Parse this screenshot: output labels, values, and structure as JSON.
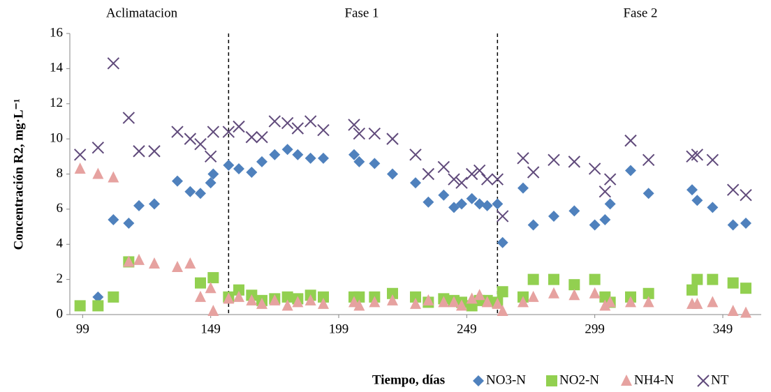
{
  "chart_data": {
    "type": "scatter",
    "x_label": "Tiempo, días",
    "y_label": "Concentración R2,  mg·L⁻¹",
    "phases": [
      "Aclimatacion",
      "Fase 1",
      "Fase 2"
    ],
    "vlines": [
      156,
      261
    ],
    "xlim": [
      94,
      364
    ],
    "xticks": [
      99,
      149,
      199,
      249,
      299,
      349
    ],
    "ylim": [
      0,
      16
    ],
    "yticks": [
      0,
      2,
      4,
      6,
      8,
      10,
      12,
      14,
      16
    ],
    "series": [
      {
        "name": "NO3-N",
        "color": "#4f81bd",
        "marker": "diamond",
        "x": [
          105,
          111,
          117,
          121,
          127,
          136,
          141,
          145,
          149,
          150,
          156,
          160,
          165,
          169,
          174,
          179,
          183,
          188,
          193,
          205,
          207,
          213,
          220,
          229,
          234,
          240,
          244,
          247,
          251,
          254,
          257,
          261,
          263,
          271,
          275,
          283,
          291,
          299,
          303,
          305,
          313,
          320,
          337,
          339,
          345,
          353,
          358
        ],
        "values": [
          1.0,
          5.4,
          5.2,
          6.2,
          6.3,
          7.6,
          7.0,
          6.9,
          7.5,
          8.0,
          8.5,
          8.3,
          8.1,
          8.7,
          9.1,
          9.4,
          9.1,
          8.9,
          8.9,
          9.1,
          8.7,
          8.6,
          8.0,
          7.5,
          6.4,
          6.8,
          6.1,
          6.3,
          6.6,
          6.3,
          6.2,
          6.3,
          4.1,
          7.2,
          5.1,
          5.6,
          5.9,
          5.1,
          5.4,
          6.3,
          8.2,
          6.9,
          7.1,
          6.5,
          6.1,
          5.1,
          5.2
        ]
      },
      {
        "name": "NO2-N",
        "color": "#92d050",
        "marker": "square",
        "x": [
          98,
          105,
          111,
          117,
          145,
          150,
          156,
          160,
          165,
          169,
          174,
          179,
          183,
          188,
          193,
          205,
          207,
          213,
          220,
          229,
          234,
          240,
          244,
          247,
          251,
          254,
          257,
          261,
          263,
          271,
          275,
          283,
          291,
          299,
          303,
          305,
          313,
          320,
          337,
          339,
          345,
          353,
          358
        ],
        "values": [
          0.5,
          0.5,
          1.0,
          3.0,
          1.8,
          2.1,
          1.0,
          1.4,
          1.1,
          0.8,
          0.9,
          1.0,
          0.9,
          1.1,
          1.0,
          1.0,
          1.0,
          1.0,
          1.2,
          1.0,
          0.7,
          0.9,
          0.8,
          0.7,
          0.5,
          0.8,
          0.8,
          0.7,
          1.3,
          1.0,
          2.0,
          2.0,
          1.7,
          2.0,
          1.0,
          0.7,
          1.0,
          1.2,
          1.4,
          2.0,
          2.0,
          1.8,
          1.5
        ]
      },
      {
        "name": "NH4-N",
        "color": "#e6a2a0",
        "marker": "triangle",
        "x": [
          98,
          105,
          111,
          117,
          121,
          127,
          136,
          141,
          145,
          149,
          150,
          156,
          160,
          165,
          169,
          174,
          179,
          183,
          188,
          193,
          205,
          207,
          213,
          220,
          229,
          234,
          240,
          244,
          247,
          251,
          254,
          257,
          261,
          263,
          271,
          275,
          283,
          291,
          299,
          303,
          305,
          313,
          320,
          337,
          339,
          345,
          353,
          358
        ],
        "values": [
          8.3,
          8.0,
          7.8,
          3.0,
          3.1,
          2.9,
          2.7,
          2.9,
          1.0,
          1.5,
          0.2,
          0.9,
          1.0,
          0.8,
          0.6,
          0.8,
          0.5,
          0.7,
          0.8,
          0.6,
          0.7,
          0.5,
          0.7,
          0.8,
          0.6,
          0.8,
          0.7,
          0.7,
          0.5,
          0.9,
          1.1,
          0.7,
          0.6,
          0.2,
          0.7,
          1.0,
          1.2,
          1.1,
          1.2,
          0.5,
          0.7,
          0.7,
          0.7,
          0.6,
          0.6,
          0.7,
          0.2,
          0.1
        ]
      },
      {
        "name": "NT",
        "color": "#604a7b",
        "marker": "x",
        "x": [
          98,
          105,
          111,
          117,
          121,
          127,
          136,
          141,
          145,
          149,
          150,
          156,
          160,
          165,
          169,
          174,
          179,
          183,
          188,
          193,
          205,
          207,
          213,
          220,
          229,
          234,
          240,
          244,
          247,
          251,
          254,
          257,
          261,
          263,
          271,
          275,
          283,
          291,
          299,
          303,
          305,
          313,
          320,
          337,
          339,
          345,
          353,
          358
        ],
        "values": [
          9.1,
          9.5,
          14.3,
          11.2,
          9.3,
          9.3,
          10.4,
          10.0,
          9.7,
          9.0,
          10.4,
          10.4,
          10.7,
          10.1,
          10.1,
          11.0,
          10.9,
          10.6,
          11.0,
          10.5,
          10.8,
          10.3,
          10.3,
          10.0,
          9.1,
          8.0,
          8.4,
          7.7,
          7.5,
          8.0,
          8.2,
          7.7,
          7.7,
          5.6,
          8.9,
          8.1,
          8.8,
          8.7,
          8.3,
          7.0,
          7.7,
          9.9,
          8.8,
          9.0,
          9.1,
          8.8,
          7.1,
          6.8
        ]
      }
    ]
  }
}
